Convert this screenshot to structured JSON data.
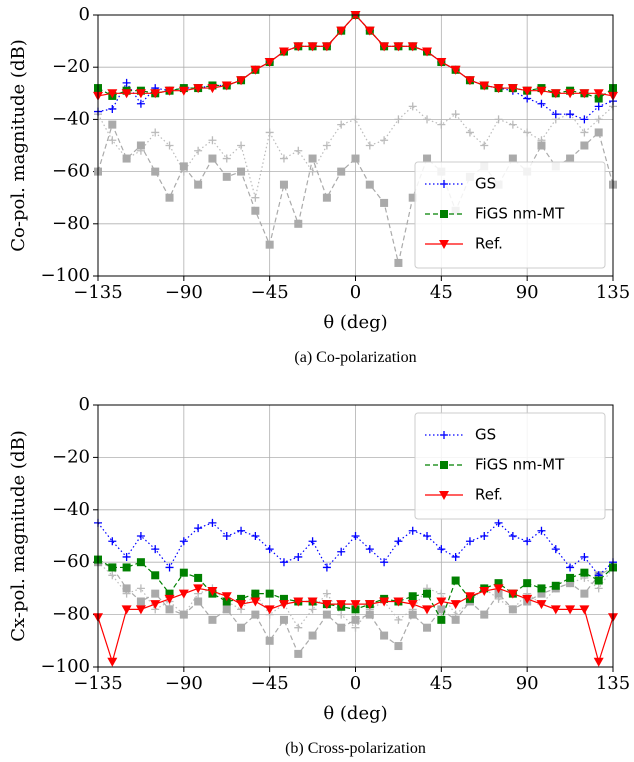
{
  "chart_data": [
    {
      "type": "line",
      "caption": "(a) Co-polarization",
      "xlabel": "θ (deg)",
      "ylabel": "Co-pol. magnitude (dB)",
      "grid": true,
      "legend": "lower right",
      "xlim": [
        -135,
        135
      ],
      "ylim": [
        -100,
        0
      ],
      "xticks": [
        {
          "value": -135,
          "label": "−135"
        },
        {
          "value": -90,
          "label": "−90"
        },
        {
          "value": -45,
          "label": "−45"
        },
        0,
        45,
        90,
        135
      ],
      "yticks": [
        {
          "value": -100,
          "label": "−100"
        },
        {
          "value": -80,
          "label": "−80"
        },
        {
          "value": -60,
          "label": "−60"
        },
        {
          "value": -40,
          "label": "−40"
        },
        {
          "value": -20,
          "label": "−20"
        },
        0
      ],
      "x": [
        -135,
        -127.5,
        -120,
        -112.5,
        -105,
        -97.5,
        -90,
        -82.5,
        -75,
        -67.5,
        -60,
        -52.5,
        -45,
        -37.5,
        -30,
        -22.5,
        -15,
        -7.5,
        0,
        7.5,
        15,
        22.5,
        30,
        37.5,
        45,
        52.5,
        60,
        67.5,
        75,
        82.5,
        90,
        97.5,
        105,
        112.5,
        120,
        127.5,
        135
      ],
      "series": [
        {
          "color": "#bbbbbb",
          "linestyle": "dotted",
          "marker": "plus",
          "values": [
            -38,
            -48,
            -55,
            -52,
            -45,
            -50,
            -60,
            -52,
            -48,
            -55,
            -50,
            -70,
            -45,
            -55,
            -52,
            -60,
            -50,
            -42,
            -40,
            -50,
            -48,
            -40,
            -35,
            -40,
            -42,
            -38,
            -45,
            -50,
            -40,
            -42,
            -45,
            -48,
            -40,
            -38,
            -45,
            -40,
            -35
          ]
        },
        {
          "color": "#aaaaaa",
          "linestyle": "dashed",
          "marker": "square",
          "values": [
            -60,
            -42,
            -55,
            -50,
            -60,
            -70,
            -58,
            -65,
            -55,
            -62,
            -60,
            -75,
            -88,
            -65,
            -80,
            -55,
            -70,
            -60,
            -55,
            -65,
            -72,
            -95,
            -70,
            -55,
            -60,
            -75,
            -62,
            -58,
            -65,
            -55,
            -60,
            -50,
            -58,
            -55,
            -50,
            -45,
            -65
          ]
        },
        {
          "name": "GS",
          "color": "#0000ff",
          "linestyle": "dotted",
          "marker": "plus",
          "values": [
            -37,
            -36,
            -26,
            -34,
            -28,
            -29,
            -28,
            -28,
            -27,
            -27,
            -25,
            -21,
            -18,
            -14,
            -12,
            -12,
            -12,
            -6,
            0,
            -6,
            -12,
            -12,
            -12,
            -14,
            -18,
            -21,
            -25,
            -27,
            -28,
            -29,
            -32,
            -34,
            -38,
            -38,
            -40,
            -35,
            -33
          ]
        },
        {
          "name": "FiGS nm-MT",
          "color": "#008000",
          "linestyle": "dashed",
          "marker": "square",
          "values": [
            -28,
            -31,
            -29,
            -29,
            -30,
            -29,
            -28,
            -28,
            -27,
            -27,
            -25,
            -21,
            -18,
            -14,
            -12,
            -12,
            -12,
            -6,
            0,
            -6,
            -12,
            -12,
            -12,
            -14,
            -18,
            -21,
            -25,
            -27,
            -28,
            -28,
            -29,
            -28,
            -30,
            -29,
            -30,
            -32,
            -28
          ]
        },
        {
          "name": "Ref.",
          "color": "#ff0000",
          "linestyle": "solid",
          "marker": "triangle-down",
          "values": [
            -31,
            -30,
            -30,
            -30,
            -30,
            -29,
            -29,
            -28,
            -28,
            -27,
            -25,
            -21,
            -18,
            -14,
            -12,
            -12,
            -12,
            -6,
            0,
            -6,
            -12,
            -12,
            -12,
            -14,
            -18,
            -21,
            -25,
            -27,
            -28,
            -28,
            -29,
            -29,
            -30,
            -30,
            -30,
            -30,
            -31
          ]
        }
      ]
    },
    {
      "type": "line",
      "caption": "(b) Cross-polarization",
      "xlabel": "θ (deg)",
      "ylabel": "Cx-pol. magnitude (dB)",
      "grid": true,
      "legend": "upper right",
      "xlim": [
        -135,
        135
      ],
      "ylim": [
        -100,
        0
      ],
      "xticks": [
        {
          "value": -135,
          "label": "−135"
        },
        {
          "value": -90,
          "label": "−90"
        },
        {
          "value": -45,
          "label": "−45"
        },
        0,
        45,
        90,
        135
      ],
      "yticks": [
        {
          "value": -100,
          "label": "−100"
        },
        {
          "value": -80,
          "label": "−80"
        },
        {
          "value": -60,
          "label": "−60"
        },
        {
          "value": -40,
          "label": "−40"
        },
        {
          "value": -20,
          "label": "−20"
        },
        0
      ],
      "x": [
        -135,
        -127.5,
        -120,
        -112.5,
        -105,
        -97.5,
        -90,
        -82.5,
        -75,
        -67.5,
        -60,
        -52.5,
        -45,
        -37.5,
        -30,
        -22.5,
        -15,
        -7.5,
        0,
        7.5,
        15,
        22.5,
        30,
        37.5,
        45,
        52.5,
        60,
        67.5,
        75,
        82.5,
        90,
        97.5,
        105,
        112.5,
        120,
        127.5,
        135
      ],
      "series": [
        {
          "color": "#bbbbbb",
          "linestyle": "dotted",
          "marker": "plus",
          "values": [
            -60,
            -65,
            -72,
            -70,
            -78,
            -75,
            -80,
            -72,
            -70,
            -75,
            -78,
            -72,
            -80,
            -76,
            -85,
            -78,
            -72,
            -80,
            -85,
            -78,
            -75,
            -82,
            -78,
            -70,
            -72,
            -80,
            -75,
            -70,
            -74,
            -78,
            -72,
            -76,
            -70,
            -68,
            -66,
            -70,
            -62
          ]
        },
        {
          "color": "#aaaaaa",
          "linestyle": "dashed",
          "marker": "square",
          "values": [
            -60,
            -62,
            -70,
            -75,
            -72,
            -78,
            -80,
            -75,
            -82,
            -78,
            -85,
            -80,
            -90,
            -82,
            -95,
            -88,
            -80,
            -85,
            -82,
            -80,
            -88,
            -92,
            -80,
            -85,
            -78,
            -82,
            -75,
            -80,
            -72,
            -78,
            -75,
            -72,
            -70,
            -68,
            -72,
            -65,
            -62
          ]
        },
        {
          "name": "GS",
          "color": "#0000ff",
          "linestyle": "dotted",
          "marker": "plus",
          "values": [
            -45,
            -52,
            -58,
            -50,
            -55,
            -62,
            -52,
            -47,
            -45,
            -50,
            -48,
            -50,
            -55,
            -60,
            -58,
            -52,
            -62,
            -56,
            -50,
            -55,
            -60,
            -52,
            -48,
            -50,
            -55,
            -58,
            -52,
            -50,
            -45,
            -50,
            -52,
            -48,
            -55,
            -62,
            -58,
            -65,
            -60
          ]
        },
        {
          "name": "FiGS nm-MT",
          "color": "#008000",
          "linestyle": "dashed",
          "marker": "square",
          "values": [
            -59,
            -62,
            -62,
            -60,
            -65,
            -72,
            -64,
            -66,
            -72,
            -75,
            -74,
            -72,
            -72,
            -74,
            -75,
            -75,
            -76,
            -77,
            -78,
            -76,
            -74,
            -75,
            -73,
            -72,
            -82,
            -67,
            -74,
            -70,
            -68,
            -72,
            -68,
            -70,
            -69,
            -66,
            -64,
            -67,
            -62
          ]
        },
        {
          "name": "Ref.",
          "color": "#ff0000",
          "linestyle": "solid",
          "marker": "triangle-down",
          "values": [
            -81,
            -98,
            -78,
            -78,
            -76,
            -74,
            -72,
            -70,
            -71,
            -73,
            -76,
            -75,
            -78,
            -76,
            -75,
            -75,
            -76,
            -76,
            -76,
            -76,
            -75,
            -75,
            -76,
            -78,
            -75,
            -76,
            -73,
            -71,
            -70,
            -72,
            -74,
            -76,
            -78,
            -78,
            -78,
            -98,
            -81
          ]
        }
      ]
    }
  ]
}
